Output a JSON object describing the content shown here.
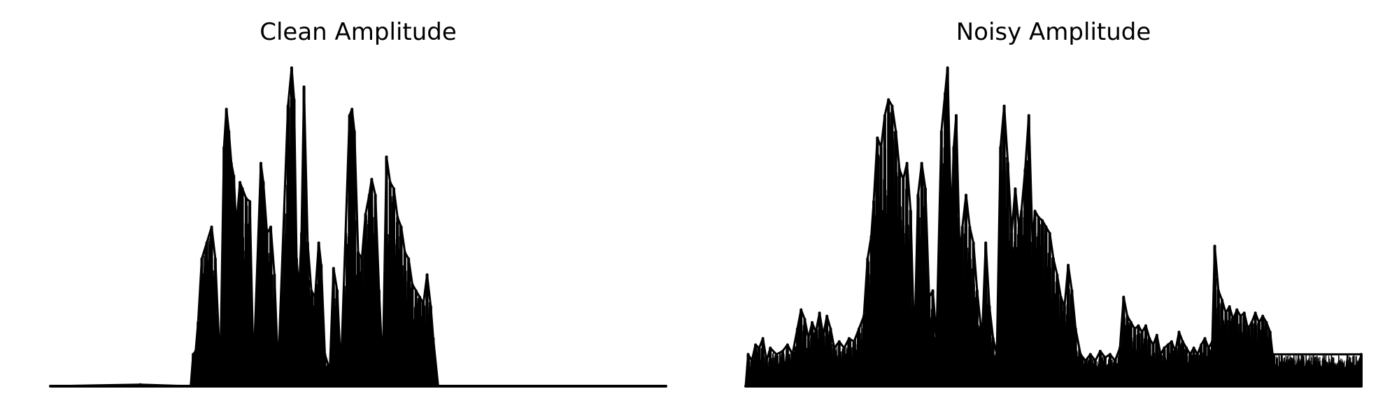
{
  "figure": {
    "background": "#ffffff",
    "line_color": "#000000"
  },
  "chart_data": [
    {
      "type": "line",
      "title": "Clean Amplitude",
      "xlabel": "",
      "ylabel": "",
      "axes_visible": false,
      "grid": false,
      "legend": false,
      "x_range": [
        0,
        1
      ],
      "ylim": [
        0,
        1
      ],
      "baseline": 0,
      "envelope_peaks": [
        [
          0.0,
          0.0
        ],
        [
          0.146,
          0.005
        ],
        [
          0.228,
          0.0
        ],
        [
          0.232,
          0.1
        ],
        [
          0.236,
          0.11
        ],
        [
          0.24,
          0.2
        ],
        [
          0.246,
          0.4
        ],
        [
          0.254,
          0.45
        ],
        [
          0.262,
          0.5
        ],
        [
          0.268,
          0.4
        ],
        [
          0.276,
          0.05
        ],
        [
          0.282,
          0.75
        ],
        [
          0.286,
          0.87
        ],
        [
          0.29,
          0.8
        ],
        [
          0.294,
          0.7
        ],
        [
          0.298,
          0.66
        ],
        [
          0.302,
          0.5
        ],
        [
          0.308,
          0.64
        ],
        [
          0.312,
          0.62
        ],
        [
          0.318,
          0.59
        ],
        [
          0.324,
          0.58
        ],
        [
          0.33,
          0.05
        ],
        [
          0.342,
          0.7
        ],
        [
          0.346,
          0.64
        ],
        [
          0.352,
          0.48
        ],
        [
          0.358,
          0.5
        ],
        [
          0.364,
          0.35
        ],
        [
          0.37,
          0.05
        ],
        [
          0.386,
          0.88
        ],
        [
          0.392,
          1.0
        ],
        [
          0.396,
          0.9
        ],
        [
          0.4,
          0.4
        ],
        [
          0.404,
          0.3
        ],
        [
          0.408,
          0.48
        ],
        [
          0.412,
          0.94
        ],
        [
          0.418,
          0.45
        ],
        [
          0.424,
          0.3
        ],
        [
          0.43,
          0.28
        ],
        [
          0.436,
          0.45
        ],
        [
          0.44,
          0.38
        ],
        [
          0.446,
          0.1
        ],
        [
          0.454,
          0.05
        ],
        [
          0.46,
          0.37
        ],
        [
          0.466,
          0.3
        ],
        [
          0.472,
          0.05
        ],
        [
          0.486,
          0.85
        ],
        [
          0.49,
          0.87
        ],
        [
          0.494,
          0.8
        ],
        [
          0.5,
          0.42
        ],
        [
          0.506,
          0.4
        ],
        [
          0.512,
          0.54
        ],
        [
          0.518,
          0.6
        ],
        [
          0.522,
          0.65
        ],
        [
          0.528,
          0.6
        ],
        [
          0.534,
          0.3
        ],
        [
          0.54,
          0.05
        ],
        [
          0.546,
          0.72
        ],
        [
          0.552,
          0.64
        ],
        [
          0.558,
          0.62
        ],
        [
          0.564,
          0.53
        ],
        [
          0.57,
          0.5
        ],
        [
          0.576,
          0.42
        ],
        [
          0.582,
          0.4
        ],
        [
          0.588,
          0.32
        ],
        [
          0.594,
          0.3
        ],
        [
          0.6,
          0.28
        ],
        [
          0.606,
          0.26
        ],
        [
          0.612,
          0.35
        ],
        [
          0.618,
          0.25
        ],
        [
          0.622,
          0.15
        ],
        [
          0.63,
          0.0
        ],
        [
          1.0,
          0.0
        ]
      ]
    },
    {
      "type": "line",
      "title": "Noisy Amplitude",
      "xlabel": "",
      "ylabel": "",
      "axes_visible": false,
      "grid": false,
      "legend": false,
      "x_range": [
        0,
        1
      ],
      "ylim": [
        0,
        1
      ],
      "baseline": 0,
      "envelope_peaks": [
        [
          0.0,
          0.0
        ],
        [
          0.004,
          0.1
        ],
        [
          0.01,
          0.08
        ],
        [
          0.016,
          0.13
        ],
        [
          0.022,
          0.12
        ],
        [
          0.028,
          0.15
        ],
        [
          0.034,
          0.08
        ],
        [
          0.04,
          0.12
        ],
        [
          0.05,
          0.1
        ],
        [
          0.06,
          0.11
        ],
        [
          0.068,
          0.13
        ],
        [
          0.076,
          0.1
        ],
        [
          0.084,
          0.18
        ],
        [
          0.09,
          0.24
        ],
        [
          0.096,
          0.21
        ],
        [
          0.102,
          0.15
        ],
        [
          0.108,
          0.2
        ],
        [
          0.114,
          0.17
        ],
        [
          0.12,
          0.23
        ],
        [
          0.126,
          0.16
        ],
        [
          0.132,
          0.22
        ],
        [
          0.138,
          0.18
        ],
        [
          0.144,
          0.12
        ],
        [
          0.152,
          0.14
        ],
        [
          0.16,
          0.12
        ],
        [
          0.168,
          0.15
        ],
        [
          0.176,
          0.14
        ],
        [
          0.184,
          0.18
        ],
        [
          0.192,
          0.22
        ],
        [
          0.198,
          0.4
        ],
        [
          0.204,
          0.47
        ],
        [
          0.208,
          0.58
        ],
        [
          0.214,
          0.78
        ],
        [
          0.22,
          0.75
        ],
        [
          0.226,
          0.85
        ],
        [
          0.232,
          0.9
        ],
        [
          0.238,
          0.88
        ],
        [
          0.244,
          0.8
        ],
        [
          0.25,
          0.68
        ],
        [
          0.256,
          0.65
        ],
        [
          0.262,
          0.7
        ],
        [
          0.268,
          0.55
        ],
        [
          0.274,
          0.12
        ],
        [
          0.28,
          0.6
        ],
        [
          0.286,
          0.7
        ],
        [
          0.292,
          0.62
        ],
        [
          0.298,
          0.28
        ],
        [
          0.304,
          0.3
        ],
        [
          0.31,
          0.15
        ],
        [
          0.318,
          0.8
        ],
        [
          0.324,
          0.92
        ],
        [
          0.328,
          1.0
        ],
        [
          0.334,
          0.5
        ],
        [
          0.338,
          0.75
        ],
        [
          0.342,
          0.85
        ],
        [
          0.348,
          0.4
        ],
        [
          0.352,
          0.5
        ],
        [
          0.358,
          0.6
        ],
        [
          0.364,
          0.5
        ],
        [
          0.37,
          0.45
        ],
        [
          0.376,
          0.3
        ],
        [
          0.384,
          0.15
        ],
        [
          0.39,
          0.45
        ],
        [
          0.396,
          0.25
        ],
        [
          0.402,
          0.15
        ],
        [
          0.408,
          0.1
        ],
        [
          0.414,
          0.75
        ],
        [
          0.42,
          0.88
        ],
        [
          0.426,
          0.7
        ],
        [
          0.432,
          0.48
        ],
        [
          0.438,
          0.62
        ],
        [
          0.444,
          0.5
        ],
        [
          0.448,
          0.55
        ],
        [
          0.454,
          0.68
        ],
        [
          0.46,
          0.85
        ],
        [
          0.466,
          0.45
        ],
        [
          0.47,
          0.55
        ],
        [
          0.476,
          0.53
        ],
        [
          0.482,
          0.52
        ],
        [
          0.488,
          0.5
        ],
        [
          0.494,
          0.48
        ],
        [
          0.5,
          0.4
        ],
        [
          0.506,
          0.35
        ],
        [
          0.512,
          0.28
        ],
        [
          0.518,
          0.25
        ],
        [
          0.524,
          0.38
        ],
        [
          0.53,
          0.3
        ],
        [
          0.536,
          0.18
        ],
        [
          0.544,
          0.1
        ],
        [
          0.552,
          0.08
        ],
        [
          0.56,
          0.1
        ],
        [
          0.568,
          0.08
        ],
        [
          0.576,
          0.11
        ],
        [
          0.584,
          0.09
        ],
        [
          0.592,
          0.1
        ],
        [
          0.6,
          0.08
        ],
        [
          0.608,
          0.12
        ],
        [
          0.614,
          0.28
        ],
        [
          0.62,
          0.22
        ],
        [
          0.626,
          0.2
        ],
        [
          0.632,
          0.18
        ],
        [
          0.638,
          0.19
        ],
        [
          0.644,
          0.17
        ],
        [
          0.65,
          0.19
        ],
        [
          0.656,
          0.15
        ],
        [
          0.662,
          0.13
        ],
        [
          0.668,
          0.16
        ],
        [
          0.674,
          0.1
        ],
        [
          0.68,
          0.12
        ],
        [
          0.686,
          0.13
        ],
        [
          0.692,
          0.14
        ],
        [
          0.698,
          0.11
        ],
        [
          0.704,
          0.17
        ],
        [
          0.71,
          0.14
        ],
        [
          0.716,
          0.12
        ],
        [
          0.722,
          0.1
        ],
        [
          0.728,
          0.12
        ],
        [
          0.734,
          0.1
        ],
        [
          0.74,
          0.13
        ],
        [
          0.746,
          0.15
        ],
        [
          0.752,
          0.12
        ],
        [
          0.758,
          0.14
        ],
        [
          0.762,
          0.44
        ],
        [
          0.768,
          0.3
        ],
        [
          0.774,
          0.27
        ],
        [
          0.78,
          0.23
        ],
        [
          0.786,
          0.25
        ],
        [
          0.792,
          0.21
        ],
        [
          0.798,
          0.24
        ],
        [
          0.804,
          0.22
        ],
        [
          0.81,
          0.23
        ],
        [
          0.816,
          0.18
        ],
        [
          0.822,
          0.2
        ],
        [
          0.828,
          0.23
        ],
        [
          0.834,
          0.2
        ],
        [
          0.84,
          0.22
        ],
        [
          0.846,
          0.2
        ],
        [
          0.852,
          0.17
        ],
        [
          0.856,
          0.1
        ],
        [
          1.0,
          0.1
        ]
      ]
    }
  ]
}
